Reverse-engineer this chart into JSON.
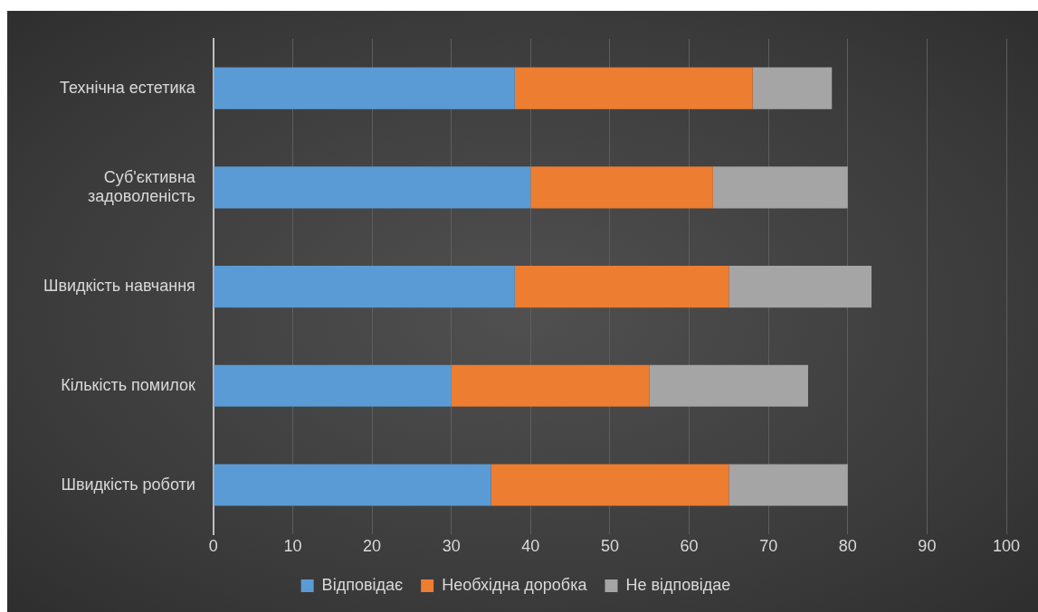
{
  "chart_data": {
    "type": "bar",
    "orientation": "horizontal",
    "stacked": true,
    "categories": [
      "Технічна естетика",
      "Суб'єктивна задоволеність",
      "Швидкість навчання",
      "Кількість помилок",
      "Швидкість роботи"
    ],
    "series": [
      {
        "name": "Відповідає",
        "color": "#5b9bd5",
        "values": [
          38,
          40,
          38,
          30,
          35
        ]
      },
      {
        "name": "Необхідна доробка",
        "color": "#ed7d31",
        "values": [
          30,
          23,
          27,
          25,
          30
        ]
      },
      {
        "name": "Не відповідае",
        "color": "#a5a5a5",
        "values": [
          10,
          17,
          18,
          20,
          15
        ]
      }
    ],
    "xlim": [
      0,
      100
    ],
    "xticks": [
      0,
      10,
      20,
      30,
      40,
      50,
      60,
      70,
      80,
      90,
      100
    ],
    "grid": "x",
    "legend": "bottom"
  }
}
